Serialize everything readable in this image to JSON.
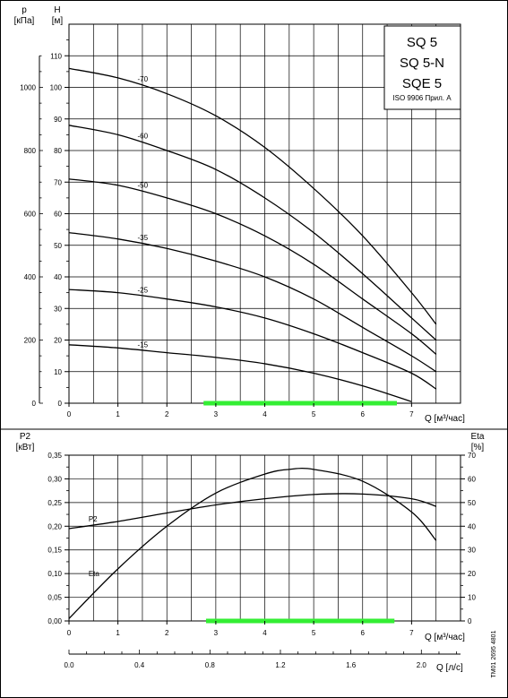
{
  "title_box": {
    "lines": [
      "SQ 5",
      "SQ 5-N",
      "SQE 5"
    ],
    "note": "ISO 9906 Прил. А"
  },
  "doc_code": "TM01 2695 4801",
  "chart_data": [
    {
      "type": "line",
      "name": "head",
      "xlabel": "Q [м³/час]",
      "ylabel": "H\n[м]",
      "ylabel_secondary": "p\n[кПа]",
      "xlim": [
        0,
        8
      ],
      "ylim": [
        0,
        120
      ],
      "ylim_secondary": [
        0,
        1200
      ],
      "x_ticks": [
        0,
        1,
        2,
        3,
        4,
        5,
        6,
        7
      ],
      "y_ticks": [
        0,
        10,
        20,
        30,
        40,
        50,
        60,
        70,
        80,
        90,
        100,
        110
      ],
      "y_ticks_secondary": [
        0,
        200,
        400,
        600,
        800,
        1000
      ],
      "grid": true,
      "series": [
        {
          "name": "-70",
          "x": [
            0,
            1,
            2,
            3,
            4,
            5,
            6,
            7,
            7.5
          ],
          "y": [
            106,
            103,
            98,
            91,
            81,
            68,
            53,
            35,
            25
          ]
        },
        {
          "name": "-60",
          "x": [
            0,
            1,
            2,
            3,
            4,
            5,
            6,
            7,
            7.5
          ],
          "y": [
            88,
            85,
            80,
            74,
            65,
            54,
            41,
            27,
            20
          ]
        },
        {
          "name": "-50",
          "x": [
            0,
            1,
            2,
            3,
            4,
            5,
            6,
            7,
            7.5
          ],
          "y": [
            71,
            69,
            65,
            60,
            53,
            44,
            33,
            22,
            15.5
          ]
        },
        {
          "name": "-35",
          "x": [
            0,
            1,
            2,
            3,
            4,
            5,
            6,
            7,
            7.5
          ],
          "y": [
            54,
            52,
            49,
            45,
            40,
            33,
            24,
            15,
            10
          ]
        },
        {
          "name": "-25",
          "x": [
            0,
            1,
            2,
            3,
            4,
            5,
            6,
            7,
            7.5
          ],
          "y": [
            36,
            35,
            33,
            30.5,
            27,
            22,
            16,
            9.5,
            4.5
          ]
        },
        {
          "name": "-15",
          "x": [
            0,
            1,
            2,
            3,
            4,
            5,
            6,
            7
          ],
          "y": [
            18.5,
            17.5,
            16,
            14.5,
            12.5,
            9.5,
            5.5,
            0.5
          ]
        }
      ],
      "series_label_x": [
        1.4,
        1.4,
        1.4,
        1.4,
        1.4,
        1.4
      ],
      "recommended_range": [
        2.75,
        6.7
      ],
      "highlight_color": "#33ee33"
    },
    {
      "type": "line",
      "name": "power_efficiency",
      "xlabel": "Q [м³/час]",
      "xlabel_secondary": "Q [л/с]",
      "ylabel": "P2\n[кВт]",
      "ylabel_secondary": "Eta\n[%]",
      "xlim": [
        0,
        8
      ],
      "ylim": [
        0,
        0.35
      ],
      "ylim_secondary": [
        0,
        70
      ],
      "x_ticks": [
        0,
        1,
        2,
        3,
        4,
        5,
        6,
        7
      ],
      "x_ticks_secondary": [
        0.0,
        0.4,
        0.8,
        1.2,
        1.6,
        2.0
      ],
      "x_ticks_secondary_labels": [
        "0.0",
        "0.4",
        "0.8",
        "1.2",
        "1.6",
        "2.0"
      ],
      "y_ticks": [
        0.0,
        0.05,
        0.1,
        0.15,
        0.2,
        0.25,
        0.3,
        0.35
      ],
      "y_tick_labels": [
        "0,00",
        "0,05",
        "0,10",
        "0,15",
        "0,20",
        "0,25",
        "0,30",
        "0,35"
      ],
      "y_ticks_secondary": [
        0,
        10,
        20,
        30,
        40,
        50,
        60,
        70
      ],
      "grid": true,
      "series": [
        {
          "name": "P2",
          "axis": "left",
          "x": [
            0,
            1,
            2,
            3,
            4,
            5,
            6,
            7,
            7.5
          ],
          "y": [
            0.195,
            0.21,
            0.228,
            0.245,
            0.258,
            0.267,
            0.268,
            0.258,
            0.242
          ]
        },
        {
          "name": "Eta",
          "axis": "right",
          "x": [
            0,
            1,
            2,
            3,
            4,
            4.5,
            5,
            6,
            7,
            7.5
          ],
          "y": [
            1,
            22,
            40,
            54,
            62,
            64,
            64,
            59,
            46,
            34
          ]
        }
      ],
      "series_label_pos": [
        [
          0.4,
          0.21
        ],
        [
          0.4,
          0.095
        ]
      ],
      "recommended_range": [
        2.8,
        6.65
      ],
      "highlight_color": "#33ee33"
    }
  ]
}
